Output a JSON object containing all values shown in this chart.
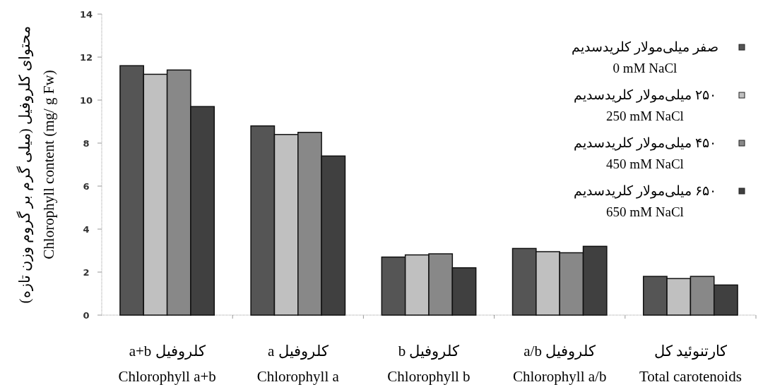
{
  "chart_data": {
    "type": "bar",
    "ylabel": "محتوای کلروفیل (میلی گرم بر گروم وزن تازه)\nChlorophyll content (mg/ g Fw)",
    "categories": [
      "کلروفیل a+b\nChlorophyll a+b",
      "کلروفیل a\nChlorophyll a",
      "کلروفیل b\nChlorophyll b",
      "کلروفیل a/b\nChlorophyll a/b",
      "کارتنوئید کل\nTotal carotenoids"
    ],
    "series": [
      {
        "name": "صفر میلی‌مولار کلریدسدیم\n0 mM NaCl",
        "color": "#555555",
        "values": [
          11.6,
          8.8,
          2.7,
          3.1,
          1.8
        ]
      },
      {
        "name": "۲۵۰ میلی‌مولار کلریدسدیم\n250 mM NaCl",
        "color": "#c0c0c0",
        "values": [
          11.2,
          8.4,
          2.8,
          2.95,
          1.7
        ]
      },
      {
        "name": "۴۵۰ میلی‌مولار کلریدسدیم\n450 mM NaCl",
        "color": "#888888",
        "values": [
          11.4,
          8.5,
          2.85,
          2.9,
          1.8
        ]
      },
      {
        "name": "۶۵۰ میلی‌مولار کلریدسدیم\n650 mM NaCl",
        "color": "#404040",
        "values": [
          9.7,
          7.4,
          2.2,
          3.2,
          1.4
        ]
      }
    ],
    "ylim": [
      0,
      14
    ],
    "yticks": [
      0,
      2,
      4,
      6,
      8,
      10,
      12,
      14
    ],
    "grid": false,
    "legend": "top right"
  }
}
